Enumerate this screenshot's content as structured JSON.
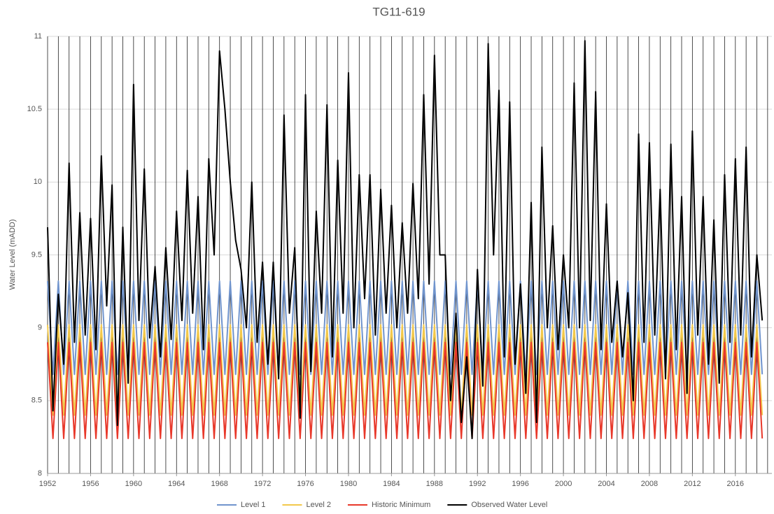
{
  "chart_data": {
    "type": "line",
    "title": "TG11-619",
    "y_label": "Water Level (mADD)",
    "xlim": [
      1952,
      2019.4
    ],
    "xticks": [
      1952,
      1956,
      1960,
      1964,
      1968,
      1972,
      1976,
      1980,
      1984,
      1988,
      1992,
      1996,
      2000,
      2004,
      2008,
      2012,
      2016
    ],
    "xminorticks": [
      1952,
      1953,
      1954,
      1955,
      1956,
      1957,
      1958,
      1959,
      1960,
      1961,
      1962,
      1963,
      1964,
      1965,
      1966,
      1967,
      1968,
      1969,
      1970,
      1971,
      1972,
      1973,
      1974,
      1975,
      1976,
      1977,
      1978,
      1979,
      1980,
      1981,
      1982,
      1983,
      1984,
      1985,
      1986,
      1987,
      1988,
      1989,
      1990,
      1991,
      1992,
      1993,
      1994,
      1995,
      1996,
      1997,
      1998,
      1999,
      2000,
      2001,
      2002,
      2003,
      2004,
      2005,
      2006,
      2007,
      2008,
      2009,
      2010,
      2011,
      2012,
      2013,
      2014,
      2015,
      2016,
      2017,
      2018,
      2019
    ],
    "ylim": [
      8,
      11
    ],
    "yticks": [
      8,
      8.5,
      9,
      9.5,
      10,
      10.5,
      11
    ],
    "grid": true,
    "legend": "bottom",
    "x": [
      1952,
      1952.5,
      1953,
      1953.5,
      1954,
      1954.5,
      1955,
      1955.5,
      1956,
      1956.5,
      1957,
      1957.5,
      1958,
      1958.5,
      1959,
      1959.5,
      1960,
      1960.5,
      1961,
      1961.5,
      1962,
      1962.5,
      1963,
      1963.5,
      1964,
      1964.5,
      1965,
      1965.5,
      1966,
      1966.5,
      1967,
      1967.5,
      1968,
      1968.5,
      1969,
      1969.5,
      1970,
      1970.5,
      1971,
      1971.5,
      1972,
      1972.5,
      1973,
      1973.5,
      1974,
      1974.5,
      1975,
      1975.5,
      1976,
      1976.5,
      1977,
      1977.5,
      1978,
      1978.5,
      1979,
      1979.5,
      1980,
      1980.5,
      1981,
      1981.5,
      1982,
      1982.5,
      1983,
      1983.5,
      1984,
      1984.5,
      1985,
      1985.5,
      1986,
      1986.5,
      1987,
      1987.5,
      1988,
      1988.5,
      1989,
      1989.5,
      1990,
      1990.5,
      1991,
      1991.5,
      1992,
      1992.5,
      1993,
      1993.5,
      1994,
      1994.5,
      1995,
      1995.5,
      1996,
      1996.5,
      1997,
      1997.5,
      1998,
      1998.5,
      1999,
      1999.5,
      2000,
      2000.5,
      2001,
      2001.5,
      2002,
      2002.5,
      2003,
      2003.5,
      2004,
      2004.5,
      2005,
      2005.5,
      2006,
      2006.5,
      2007,
      2007.5,
      2008,
      2008.5,
      2009,
      2009.5,
      2010,
      2010.5,
      2011,
      2011.5,
      2012,
      2012.5,
      2013,
      2013.5,
      2014,
      2014.5,
      2015,
      2015.5,
      2016,
      2016.5,
      2017,
      2017.5,
      2018,
      2018.5
    ],
    "series": [
      {
        "name": "Level 1",
        "color": "#7094cd",
        "values": [
          9.32,
          8.68,
          9.32,
          8.68,
          9.32,
          8.68,
          9.32,
          8.68,
          9.32,
          8.68,
          9.32,
          8.68,
          9.32,
          8.68,
          9.32,
          8.68,
          9.32,
          8.68,
          9.32,
          8.68,
          9.32,
          8.68,
          9.32,
          8.68,
          9.32,
          8.68,
          9.32,
          8.68,
          9.32,
          8.68,
          9.32,
          8.68,
          9.32,
          8.68,
          9.32,
          8.68,
          9.32,
          8.68,
          9.32,
          8.68,
          9.32,
          8.68,
          9.32,
          8.68,
          9.32,
          8.68,
          9.32,
          8.68,
          9.32,
          8.68,
          9.32,
          8.68,
          9.32,
          8.68,
          9.32,
          8.68,
          9.32,
          8.68,
          9.32,
          8.68,
          9.32,
          8.68,
          9.32,
          8.68,
          9.32,
          8.68,
          9.32,
          8.68,
          9.32,
          8.68,
          9.32,
          8.68,
          9.32,
          8.68,
          9.32,
          8.68,
          9.32,
          8.68,
          9.32,
          8.68,
          9.32,
          8.68,
          9.32,
          8.68,
          9.32,
          8.68,
          9.32,
          8.68,
          9.32,
          8.68,
          9.32,
          8.68,
          9.32,
          8.68,
          9.32,
          8.68,
          9.32,
          8.68,
          9.32,
          8.68,
          9.32,
          8.68,
          9.32,
          8.68,
          9.32,
          8.68,
          9.32,
          8.68,
          9.32,
          8.68,
          9.32,
          8.68,
          9.32,
          8.68,
          9.32,
          8.68,
          9.32,
          8.68,
          9.32,
          8.68,
          9.32,
          8.68,
          9.32,
          8.68,
          9.32,
          8.68,
          9.32,
          8.68,
          9.32,
          8.68,
          9.32,
          8.68,
          9.32,
          8.68
        ]
      },
      {
        "name": "Level 2",
        "color": "#f2c84b",
        "values": [
          9.02,
          8.4,
          9.02,
          8.4,
          9.02,
          8.4,
          9.02,
          8.4,
          9.02,
          8.4,
          9.02,
          8.4,
          9.02,
          8.4,
          9.02,
          8.4,
          9.02,
          8.4,
          9.02,
          8.4,
          9.02,
          8.4,
          9.02,
          8.4,
          9.02,
          8.4,
          9.02,
          8.4,
          9.02,
          8.4,
          9.02,
          8.4,
          9.02,
          8.4,
          9.02,
          8.4,
          9.02,
          8.4,
          9.02,
          8.4,
          9.02,
          8.4,
          9.02,
          8.4,
          9.02,
          8.4,
          9.02,
          8.4,
          9.02,
          8.4,
          9.02,
          8.4,
          9.02,
          8.4,
          9.02,
          8.4,
          9.02,
          8.4,
          9.02,
          8.4,
          9.02,
          8.4,
          9.02,
          8.4,
          9.02,
          8.4,
          9.02,
          8.4,
          9.02,
          8.4,
          9.02,
          8.4,
          9.02,
          8.4,
          9.02,
          8.4,
          9.02,
          8.4,
          9.02,
          8.4,
          9.02,
          8.4,
          9.02,
          8.4,
          9.02,
          8.4,
          9.02,
          8.4,
          9.02,
          8.4,
          9.02,
          8.4,
          9.02,
          8.4,
          9.02,
          8.4,
          9.02,
          8.4,
          9.02,
          8.4,
          9.02,
          8.4,
          9.02,
          8.4,
          9.02,
          8.4,
          9.02,
          8.4,
          9.02,
          8.4,
          9.02,
          8.4,
          9.02,
          8.4,
          9.02,
          8.4,
          9.02,
          8.4,
          9.02,
          8.4,
          9.02,
          8.4,
          9.02,
          8.4,
          9.02,
          8.4,
          9.02,
          8.4,
          9.02,
          8.4,
          9.02,
          8.4,
          9.02,
          8.4
        ]
      },
      {
        "name": "Historic Minimum",
        "color": "#e8382a",
        "values": [
          8.9,
          8.24,
          8.9,
          8.24,
          8.9,
          8.24,
          8.9,
          8.24,
          8.9,
          8.24,
          8.9,
          8.24,
          8.9,
          8.24,
          8.9,
          8.24,
          8.9,
          8.24,
          8.9,
          8.24,
          8.9,
          8.24,
          8.9,
          8.24,
          8.9,
          8.24,
          8.9,
          8.24,
          8.9,
          8.24,
          8.9,
          8.24,
          8.9,
          8.24,
          8.9,
          8.24,
          8.9,
          8.24,
          8.9,
          8.24,
          8.9,
          8.24,
          8.9,
          8.24,
          8.9,
          8.24,
          8.9,
          8.24,
          8.9,
          8.24,
          8.9,
          8.24,
          8.9,
          8.24,
          8.9,
          8.24,
          8.9,
          8.24,
          8.9,
          8.24,
          8.9,
          8.24,
          8.9,
          8.24,
          8.9,
          8.24,
          8.9,
          8.24,
          8.9,
          8.24,
          8.9,
          8.24,
          8.9,
          8.24,
          8.9,
          8.24,
          8.9,
          8.24,
          8.9,
          8.24,
          8.9,
          8.24,
          8.9,
          8.24,
          8.9,
          8.24,
          8.9,
          8.24,
          8.9,
          8.24,
          8.9,
          8.24,
          8.9,
          8.24,
          8.9,
          8.24,
          8.9,
          8.24,
          8.9,
          8.24,
          8.9,
          8.24,
          8.9,
          8.24,
          8.9,
          8.24,
          8.9,
          8.24,
          8.9,
          8.24,
          8.9,
          8.24,
          8.9,
          8.24,
          8.9,
          8.24,
          8.9,
          8.24,
          8.9,
          8.24,
          8.9,
          8.24,
          8.9,
          8.24,
          8.9,
          8.24,
          8.9,
          8.24,
          8.9,
          8.24,
          8.9,
          8.24,
          8.9,
          8.24
        ]
      },
      {
        "name": "Observed Water Level",
        "color": "#000000",
        "values": [
          9.69,
          8.43,
          9.23,
          8.75,
          10.13,
          8.9,
          9.79,
          8.95,
          9.75,
          8.85,
          10.18,
          9.15,
          9.98,
          8.33,
          9.69,
          8.62,
          10.67,
          9.05,
          10.09,
          8.93,
          9.42,
          8.8,
          9.55,
          8.92,
          9.8,
          9.05,
          10.08,
          9.1,
          9.9,
          8.85,
          10.16,
          9.5,
          10.9,
          10.5,
          10.0,
          9.6,
          9.4,
          9.0,
          10.0,
          8.9,
          9.45,
          8.75,
          9.45,
          8.65,
          10.46,
          9.1,
          9.55,
          8.38,
          10.6,
          8.7,
          9.8,
          9.1,
          10.53,
          8.8,
          10.15,
          9.1,
          10.75,
          9.0,
          10.05,
          9.2,
          10.05,
          8.95,
          9.95,
          9.1,
          9.84,
          9.0,
          9.72,
          9.1,
          9.99,
          9.2,
          10.6,
          9.3,
          10.87,
          9.5,
          9.5,
          8.5,
          9.1,
          8.35,
          8.8,
          8.24,
          9.4,
          8.6,
          10.95,
          9.5,
          10.63,
          8.8,
          10.55,
          8.75,
          9.3,
          8.55,
          9.86,
          8.35,
          10.24,
          9.0,
          9.7,
          8.85,
          9.5,
          9.0,
          10.68,
          9.0,
          10.97,
          9.05,
          10.62,
          8.85,
          9.85,
          8.9,
          9.32,
          8.8,
          9.24,
          8.5,
          10.33,
          8.9,
          10.27,
          8.95,
          9.95,
          8.65,
          10.26,
          8.85,
          9.9,
          8.55,
          10.35,
          8.95,
          9.9,
          8.75,
          9.74,
          8.62,
          10.05,
          8.9,
          10.16,
          8.95,
          10.24,
          8.8,
          9.5,
          9.05
        ]
      }
    ]
  }
}
